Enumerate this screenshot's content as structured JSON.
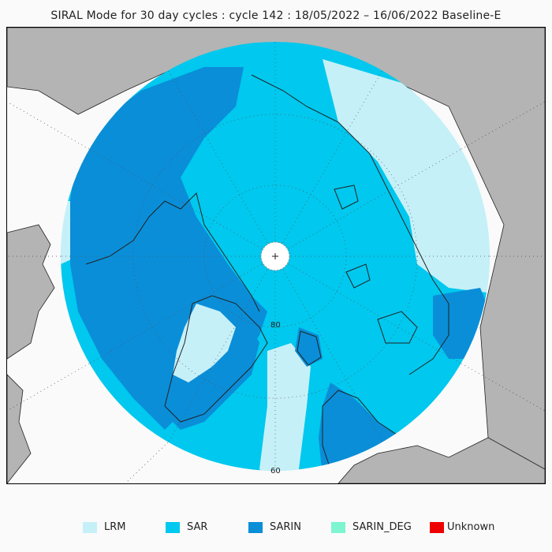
{
  "title": "SIRAL Mode for 30 day cycles : cycle 142 : 18/05/2022 – 16/06/2022 Baseline-E",
  "map": {
    "projection": "north-polar-stereographic",
    "latitude_labels": [
      "80",
      "60"
    ],
    "pole_marker": "pole-cross-icon",
    "colors": {
      "land": "#b4b4b4",
      "ocean_background": "#fafafa",
      "coastline": "#222222",
      "graticule": "#555555",
      "pole_hole": "#ffffff",
      "no_data_tracks": "#c8c8c8"
    }
  },
  "legend": [
    {
      "label": "LRM",
      "color": "#c6f0f8"
    },
    {
      "label": "SAR",
      "color": "#00c8ee"
    },
    {
      "label": "SARIN",
      "color": "#0a8ed8"
    },
    {
      "label": "SARIN_DEG",
      "color": "#7cf5d0"
    },
    {
      "label": "Unknown",
      "color": "#ee0000"
    }
  ]
}
